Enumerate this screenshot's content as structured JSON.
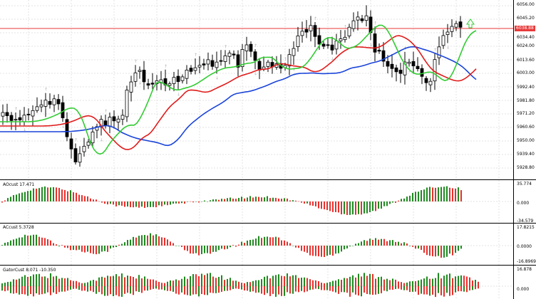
{
  "colors": {
    "bull": "#1f8a1f",
    "bear": "#e8302c",
    "ma_fast": "#33cc33",
    "ma_mid": "#e01b1b",
    "ma_slow": "#1a44d8",
    "price_line": "#e83a3a",
    "arrow": "#33cc33",
    "fractal": "#b0b0b0"
  },
  "price_axis": {
    "labels": [
      "6056.00",
      "6045.20",
      "6034.40",
      "6024.00",
      "6013.60",
      "6003.00",
      "5992.40",
      "5981.80",
      "5971.20",
      "5960.60",
      "5950.00",
      "5939.40",
      "5928.80"
    ],
    "current_price": "6038.88"
  },
  "indicators": [
    {
      "title": "AOcust 17.471",
      "icon": "histogram-icon",
      "axis_labels": [
        "35.774",
        "0.000",
        "-34.579"
      ]
    },
    {
      "title": "ACcust 5.3728",
      "icon": "histogram-icon",
      "axis_labels": [
        "17.8215",
        "0.0000",
        "-16.8969"
      ]
    },
    {
      "title": "GatorCust 8.071 -10.350",
      "icon": "histogram-icon",
      "axis_labels": [
        "16.878",
        "0.000"
      ]
    }
  ]
}
